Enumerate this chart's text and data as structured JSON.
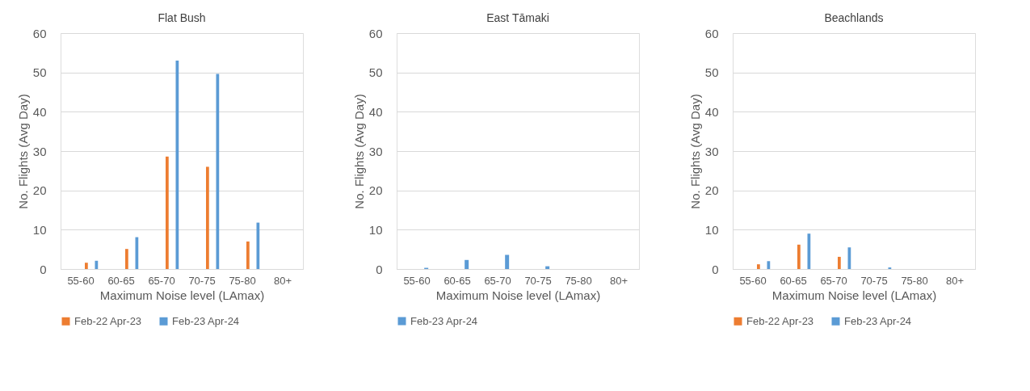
{
  "chart_data": [
    {
      "type": "bar",
      "title": "Flat Bush",
      "xlabel": "Maximum Noise level (LAmax)",
      "ylabel": "No. Flights (Avg Day)",
      "categories": [
        "55-60",
        "60-65",
        "65-70",
        "70-75",
        "75-80",
        "80+"
      ],
      "series": [
        {
          "name": "Feb-22 Apr-23",
          "color": "#ed7d31",
          "values": [
            1.6,
            5.1,
            28.6,
            26,
            7,
            0
          ]
        },
        {
          "name": "Feb-23 Apr-24",
          "color": "#5b9bd5",
          "values": [
            2.1,
            8.1,
            53,
            49.6,
            11.8,
            0
          ]
        }
      ],
      "ylim": [
        0,
        60
      ],
      "yticks": [
        0,
        10,
        20,
        30,
        40,
        50,
        60
      ],
      "grid": "y",
      "legend": "bottom"
    },
    {
      "type": "bar",
      "title": "East Tāmaki",
      "xlabel": "Maximum Noise level (LAmax)",
      "ylabel": "No. Flights (Avg Day)",
      "categories": [
        "55-60",
        "60-65",
        "65-70",
        "70-75",
        "75-80",
        "80+"
      ],
      "series": [
        {
          "name": "Feb-23 Apr-24",
          "color": "#5b9bd5",
          "values": [
            0.3,
            2.3,
            3.6,
            0.7,
            0,
            0
          ]
        }
      ],
      "ylim": [
        0,
        60
      ],
      "yticks": [
        0,
        10,
        20,
        30,
        40,
        50,
        60
      ],
      "grid": "y",
      "legend": "bottom"
    },
    {
      "type": "bar",
      "title": "Beachlands",
      "xlabel": "Maximum Noise level (LAmax)",
      "ylabel": "No. Flights (Avg Day)",
      "categories": [
        "55-60",
        "60-65",
        "65-70",
        "70-75",
        "75-80",
        "80+"
      ],
      "series": [
        {
          "name": "Feb-22 Apr-23",
          "color": "#ed7d31",
          "values": [
            1.2,
            6.2,
            3.1,
            0,
            0,
            0
          ]
        },
        {
          "name": "Feb-23 Apr-24",
          "color": "#5b9bd5",
          "values": [
            2.0,
            9.0,
            5.5,
            0.4,
            0,
            0
          ]
        }
      ],
      "ylim": [
        0,
        60
      ],
      "yticks": [
        0,
        10,
        20,
        30,
        40,
        50,
        60
      ],
      "grid": "y",
      "legend": "bottom"
    }
  ]
}
